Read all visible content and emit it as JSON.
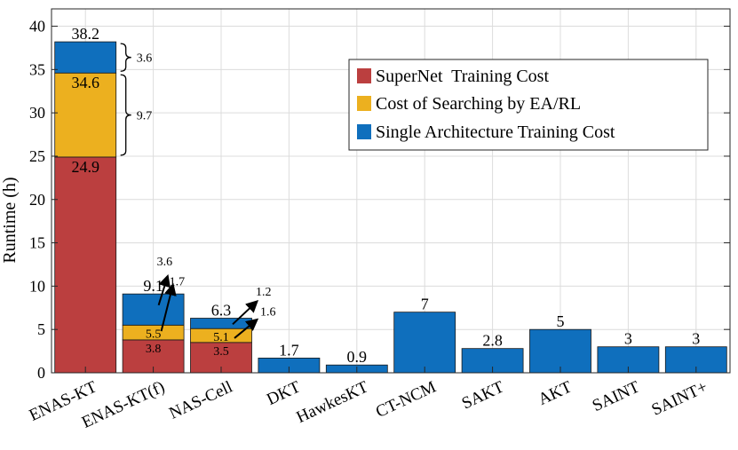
{
  "chart_data": {
    "type": "bar",
    "stacked": true,
    "ylabel": "Runtime (h)",
    "xlabel": "",
    "ylim": [
      0,
      42
    ],
    "yticks": [
      0,
      5,
      10,
      15,
      20,
      25,
      30,
      35,
      40
    ],
    "grid": true,
    "legend_position": "top-right",
    "categories": [
      "ENAS-KT",
      "ENAS-KT(f)",
      "NAS-Cell",
      "DKT",
      "HawkesKT",
      "CT-NCM",
      "SAKT",
      "AKT",
      "SAINT",
      "SAINT+"
    ],
    "series": [
      {
        "name": "SuperNet  Training Cost",
        "color": "#bb3f3f",
        "values": [
          24.9,
          3.8,
          3.5,
          0,
          0,
          0,
          0,
          0,
          0,
          0
        ]
      },
      {
        "name": "Cost of Searching by EA/RL",
        "color": "#ecb01f",
        "values": [
          9.7,
          1.7,
          1.6,
          0,
          0,
          0,
          0,
          0,
          0,
          0
        ]
      },
      {
        "name": "Single Architecture Training Cost",
        "color": "#0f6fbd",
        "values": [
          3.6,
          3.6,
          1.2,
          1.7,
          0.9,
          7,
          2.8,
          5,
          3,
          3
        ]
      }
    ],
    "total_labels": [
      "38.2",
      "9.1",
      "6.3",
      "1.7",
      "0.9",
      "7",
      "2.8",
      "5",
      "3",
      "3"
    ],
    "inner_labels": [
      {
        "bar": 0,
        "level": 24.9,
        "text": "24.9"
      },
      {
        "bar": 0,
        "level": 34.6,
        "text": "34.6"
      },
      {
        "bar": 1,
        "level": 3.8,
        "text": "3.8"
      },
      {
        "bar": 1,
        "level": 5.5,
        "text": "5.5"
      },
      {
        "bar": 2,
        "level": 3.5,
        "text": "3.5"
      },
      {
        "bar": 2,
        "level": 5.1,
        "text": "5.1"
      }
    ],
    "brace_annotations": [
      {
        "bar": 0,
        "from": 34.6,
        "to": 38.2,
        "text": "3.6"
      },
      {
        "bar": 0,
        "from": 24.9,
        "to": 34.6,
        "text": "9.7"
      }
    ],
    "arrow_annotations": [
      {
        "bar": 1,
        "text": "3.6"
      },
      {
        "bar": 1,
        "text": "1.7"
      },
      {
        "bar": 2,
        "text": "1.2"
      },
      {
        "bar": 2,
        "text": "1.6"
      }
    ]
  }
}
